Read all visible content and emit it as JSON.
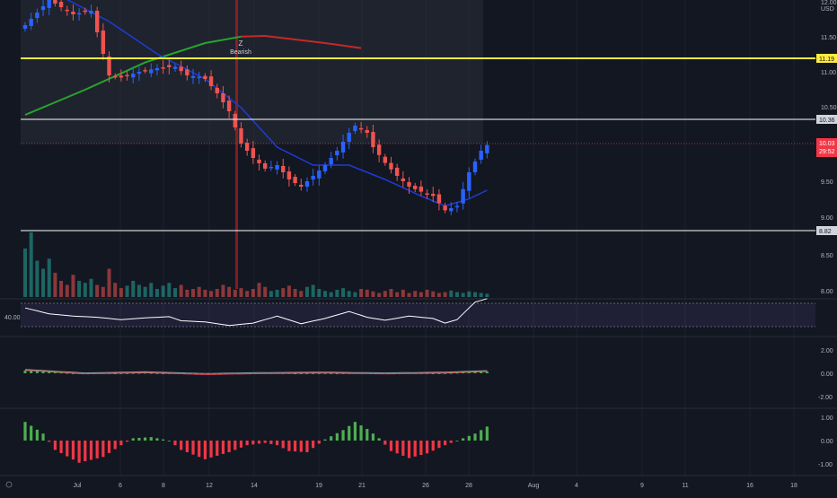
{
  "colors": {
    "background": "#131722",
    "grid": "#1e222d",
    "text": "#b2b5be",
    "up": "#2962ff",
    "down": "#ef5350",
    "up_vol": "#26a69a",
    "down_vol": "#ef5350",
    "resistance": "#ffeb3b",
    "level": "#ffffff",
    "sma_long": "#26a62a",
    "sma_long_down": "#c62828",
    "ema_short": "#1e3bd6",
    "rsi": "#ffffff",
    "rsi_band": "#7e57c2",
    "macd_up": "#4caf50",
    "macd_down": "#f23645"
  },
  "price_axis": {
    "currency": "USD",
    "ticks": [
      "12.00",
      "11.50",
      "11.00",
      "10.50",
      "10.00",
      "9.50",
      "9.00",
      "8.50",
      "8.00"
    ]
  },
  "time_axis": {
    "ticks": [
      "Jul",
      "6",
      "8",
      "12",
      "14",
      "19",
      "21",
      "26",
      "28",
      "Aug",
      "4",
      "9",
      "11",
      "16",
      "18"
    ]
  },
  "annotation": {
    "marker": "Z",
    "label": "Bearish"
  },
  "price_labels": {
    "resistance": "11.19",
    "upper_level": "10.36",
    "last_price": "10.03",
    "countdown": "29:52",
    "support": "8.82"
  },
  "rsi_panel": {
    "label": "40.00"
  },
  "macd_panel": {
    "ticks": [
      "2.00",
      "0.00",
      "-2.00"
    ]
  },
  "osc_panel": {
    "ticks": [
      "1.00",
      "0.00",
      "-1.00"
    ]
  },
  "chart_data": {
    "type": "candlestick",
    "symbol_currency": "USD",
    "ylim": [
      7.95,
      12.1
    ],
    "horizontal_levels": [
      {
        "name": "resistance",
        "value": 11.19,
        "color": "#ffeb3b"
      },
      {
        "name": "level",
        "value": 10.36,
        "color": "#ffffff"
      },
      {
        "name": "support",
        "value": 8.82,
        "color": "#ffffff"
      }
    ],
    "last_price": 10.03,
    "close_path": [
      [
        0,
        11.7
      ],
      [
        4,
        12.05
      ],
      [
        8,
        11.85
      ],
      [
        11,
        11.9
      ],
      [
        14,
        11.0
      ],
      [
        16,
        10.97
      ],
      [
        19,
        11.05
      ],
      [
        22,
        11.1
      ],
      [
        25,
        11.12
      ],
      [
        27,
        11.0
      ],
      [
        29,
        10.98
      ],
      [
        30,
        10.95
      ],
      [
        32,
        10.75
      ],
      [
        34,
        10.5
      ],
      [
        36,
        10.05
      ],
      [
        38,
        9.85
      ],
      [
        40,
        9.7
      ],
      [
        42,
        9.75
      ],
      [
        44,
        9.55
      ],
      [
        46,
        9.45
      ],
      [
        48,
        9.6
      ],
      [
        50,
        9.75
      ],
      [
        52,
        9.95
      ],
      [
        54,
        10.2
      ],
      [
        55,
        10.3
      ],
      [
        57,
        10.2
      ],
      [
        58,
        10.0
      ],
      [
        60,
        9.78
      ],
      [
        62,
        9.6
      ],
      [
        64,
        9.45
      ],
      [
        66,
        9.38
      ],
      [
        68,
        9.32
      ],
      [
        70,
        9.12
      ],
      [
        72,
        9.18
      ],
      [
        74,
        9.65
      ],
      [
        76,
        9.95
      ],
      [
        77,
        10.03
      ]
    ],
    "sma_long_path": [
      [
        0,
        10.45
      ],
      [
        10,
        10.8
      ],
      [
        20,
        11.18
      ],
      [
        30,
        11.45
      ],
      [
        36,
        11.54
      ],
      [
        40,
        11.55
      ],
      [
        45,
        11.5
      ],
      [
        50,
        11.45
      ],
      [
        56,
        11.38
      ]
    ],
    "ema_short_path": [
      [
        6,
        12.1
      ],
      [
        14,
        11.75
      ],
      [
        22,
        11.3
      ],
      [
        30,
        10.95
      ],
      [
        36,
        10.55
      ],
      [
        42,
        10.0
      ],
      [
        48,
        9.75
      ],
      [
        54,
        9.75
      ],
      [
        60,
        9.55
      ],
      [
        66,
        9.32
      ],
      [
        70,
        9.18
      ],
      [
        74,
        9.28
      ],
      [
        77,
        9.4
      ]
    ],
    "volume": [
      120,
      160,
      90,
      70,
      95,
      60,
      40,
      30,
      55,
      40,
      35,
      45,
      30,
      25,
      70,
      35,
      22,
      28,
      40,
      30,
      25,
      35,
      20,
      28,
      35,
      22,
      30,
      18,
      20,
      25,
      18,
      15,
      20,
      30,
      25,
      18,
      22,
      15,
      20,
      35,
      25,
      15,
      18,
      22,
      28,
      20,
      15,
      25,
      30,
      20,
      15,
      12,
      18,
      22,
      15,
      12,
      20,
      18,
      14,
      10,
      15,
      20,
      12,
      18,
      10,
      15,
      12,
      18,
      14,
      10,
      12,
      16,
      12,
      10,
      14,
      12,
      10,
      8
    ],
    "rsi_path": [
      [
        0,
        62
      ],
      [
        4,
        52
      ],
      [
        8,
        48
      ],
      [
        12,
        46
      ],
      [
        16,
        42
      ],
      [
        20,
        45
      ],
      [
        24,
        47
      ],
      [
        26,
        40
      ],
      [
        30,
        38
      ],
      [
        34,
        32
      ],
      [
        38,
        36
      ],
      [
        42,
        48
      ],
      [
        46,
        35
      ],
      [
        50,
        44
      ],
      [
        54,
        56
      ],
      [
        57,
        46
      ],
      [
        60,
        41
      ],
      [
        64,
        48
      ],
      [
        68,
        44
      ],
      [
        70,
        36
      ],
      [
        72,
        42
      ],
      [
        75,
        72
      ],
      [
        77,
        78
      ]
    ],
    "rsi_bands": [
      70,
      30
    ],
    "oscillator_path": [
      [
        0,
        0.8
      ],
      [
        3,
        0.3
      ],
      [
        5,
        -0.4
      ],
      [
        9,
        -0.95
      ],
      [
        13,
        -0.7
      ],
      [
        16,
        -0.2
      ],
      [
        18,
        0.1
      ],
      [
        21,
        0.15
      ],
      [
        24,
        0.0
      ],
      [
        26,
        -0.4
      ],
      [
        30,
        -0.8
      ],
      [
        34,
        -0.5
      ],
      [
        37,
        -0.2
      ],
      [
        40,
        -0.1
      ],
      [
        42,
        -0.2
      ],
      [
        44,
        -0.45
      ],
      [
        47,
        -0.5
      ],
      [
        50,
        0.05
      ],
      [
        53,
        0.45
      ],
      [
        55,
        0.8
      ],
      [
        57,
        0.5
      ],
      [
        59,
        0.1
      ],
      [
        61,
        -0.45
      ],
      [
        64,
        -0.75
      ],
      [
        67,
        -0.55
      ],
      [
        70,
        -0.2
      ],
      [
        73,
        0.1
      ],
      [
        75,
        0.3
      ],
      [
        77,
        0.6
      ]
    ],
    "macd_path": [
      [
        0,
        0.25
      ],
      [
        10,
        -0.05
      ],
      [
        20,
        0.05
      ],
      [
        30,
        -0.1
      ],
      [
        40,
        -0.02
      ],
      [
        50,
        0.02
      ],
      [
        60,
        -0.05
      ],
      [
        70,
        0.02
      ],
      [
        77,
        0.15
      ]
    ]
  }
}
